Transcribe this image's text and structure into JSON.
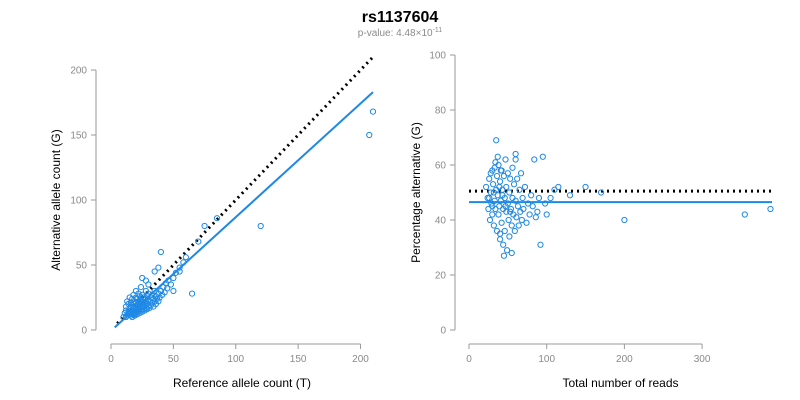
{
  "title": "rs1137604",
  "subtitle": {
    "label": "p-value: ",
    "mantissa": "4.48",
    "times": "×",
    "base": "10",
    "exponent": "-11"
  },
  "colors": {
    "points": "#1e88e5",
    "fit": "#1e88e5",
    "reference": "#000000",
    "axis": "#9a9a9a"
  },
  "chart_data": [
    {
      "type": "scatter",
      "title": "",
      "xlabel": "Reference allele count (T)",
      "ylabel": "Alternative allele count (G)",
      "xlim": [
        0,
        210
      ],
      "ylim": [
        0,
        200
      ],
      "xticks": [
        0,
        50,
        100,
        150,
        200
      ],
      "yticks": [
        0,
        50,
        100,
        150,
        200
      ],
      "reference_line": {
        "style": "dotted",
        "x": [
          5,
          210
        ],
        "y": [
          5,
          210
        ]
      },
      "fit_line": {
        "style": "solid",
        "x": [
          3,
          210
        ],
        "y": [
          2,
          183
        ]
      },
      "points": [
        [
          10,
          10
        ],
        [
          11,
          13
        ],
        [
          12,
          15
        ],
        [
          12,
          18
        ],
        [
          13,
          11
        ],
        [
          13,
          22
        ],
        [
          14,
          14
        ],
        [
          14,
          20
        ],
        [
          15,
          12
        ],
        [
          15,
          16
        ],
        [
          15,
          25
        ],
        [
          16,
          13
        ],
        [
          16,
          18
        ],
        [
          16,
          21
        ],
        [
          17,
          10
        ],
        [
          17,
          15
        ],
        [
          17,
          19
        ],
        [
          17,
          24
        ],
        [
          18,
          12
        ],
        [
          18,
          17
        ],
        [
          18,
          20
        ],
        [
          18,
          27
        ],
        [
          19,
          11
        ],
        [
          19,
          14
        ],
        [
          19,
          22
        ],
        [
          19,
          16
        ],
        [
          20,
          13
        ],
        [
          20,
          18
        ],
        [
          20,
          21
        ],
        [
          20,
          25
        ],
        [
          20,
          30
        ],
        [
          21,
          12
        ],
        [
          21,
          16
        ],
        [
          21,
          19
        ],
        [
          21,
          24
        ],
        [
          22,
          14
        ],
        [
          22,
          17
        ],
        [
          22,
          22
        ],
        [
          22,
          28
        ],
        [
          23,
          13
        ],
        [
          23,
          18
        ],
        [
          23,
          21
        ],
        [
          23,
          26
        ],
        [
          24,
          15
        ],
        [
          24,
          20
        ],
        [
          24,
          23
        ],
        [
          24,
          33
        ],
        [
          25,
          14
        ],
        [
          25,
          18
        ],
        [
          25,
          22
        ],
        [
          25,
          27
        ],
        [
          26,
          16
        ],
        [
          26,
          21
        ],
        [
          26,
          25
        ],
        [
          27,
          15
        ],
        [
          27,
          19
        ],
        [
          27,
          24
        ],
        [
          28,
          17
        ],
        [
          28,
          22
        ],
        [
          28,
          30
        ],
        [
          29,
          16
        ],
        [
          29,
          20
        ],
        [
          29,
          26
        ],
        [
          30,
          18
        ],
        [
          30,
          23
        ],
        [
          30,
          28
        ],
        [
          31,
          17
        ],
        [
          31,
          22
        ],
        [
          32,
          19
        ],
        [
          32,
          25
        ],
        [
          33,
          21
        ],
        [
          33,
          27
        ],
        [
          34,
          18
        ],
        [
          34,
          24
        ],
        [
          35,
          22
        ],
        [
          35,
          30
        ],
        [
          36,
          20
        ],
        [
          36,
          26
        ],
        [
          37,
          24
        ],
        [
          38,
          22
        ],
        [
          38,
          28
        ],
        [
          39,
          25
        ],
        [
          40,
          30
        ],
        [
          41,
          27
        ],
        [
          42,
          33
        ],
        [
          43,
          29
        ],
        [
          44,
          36
        ],
        [
          45,
          32
        ],
        [
          46,
          38
        ],
        [
          48,
          35
        ],
        [
          50,
          40
        ],
        [
          52,
          44
        ],
        [
          55,
          48
        ],
        [
          58,
          52
        ],
        [
          60,
          56
        ],
        [
          25,
          40
        ],
        [
          28,
          38
        ],
        [
          30,
          35
        ],
        [
          35,
          45
        ],
        [
          38,
          48
        ],
        [
          14,
          12
        ],
        [
          16,
          11
        ],
        [
          18,
          14
        ],
        [
          12,
          10
        ],
        [
          15,
          14
        ],
        [
          17,
          13
        ],
        [
          19,
          12
        ],
        [
          21,
          15
        ],
        [
          23,
          16
        ],
        [
          26,
          18
        ],
        [
          50,
          30
        ],
        [
          65,
          28
        ],
        [
          70,
          68
        ],
        [
          75,
          80
        ],
        [
          85,
          86
        ],
        [
          120,
          80
        ],
        [
          207,
          150
        ],
        [
          210,
          168
        ],
        [
          40,
          60
        ],
        [
          55,
          45
        ]
      ]
    },
    {
      "type": "scatter",
      "title": "",
      "xlabel": "Total number of reads",
      "ylabel": "Percentage alternative (G)",
      "xlim": [
        0,
        390
      ],
      "ylim": [
        0,
        100
      ],
      "xticks": [
        0,
        100,
        200,
        300
      ],
      "yticks": [
        0,
        20,
        40,
        60,
        80,
        100
      ],
      "reference_line": {
        "style": "dotted",
        "x": [
          0,
          390
        ],
        "y": [
          50.5,
          50.5
        ]
      },
      "fit_line": {
        "style": "solid",
        "x": [
          0,
          390
        ],
        "y": [
          46.5,
          46.5
        ]
      },
      "points": [
        [
          22,
          52
        ],
        [
          24,
          48
        ],
        [
          25,
          44
        ],
        [
          26,
          55
        ],
        [
          27,
          40
        ],
        [
          28,
          50
        ],
        [
          29,
          46
        ],
        [
          30,
          58
        ],
        [
          30,
          42
        ],
        [
          31,
          53
        ],
        [
          32,
          38
        ],
        [
          33,
          47
        ],
        [
          34,
          61
        ],
        [
          34,
          44
        ],
        [
          35,
          51
        ],
        [
          36,
          36
        ],
        [
          36,
          56
        ],
        [
          37,
          49
        ],
        [
          38,
          42
        ],
        [
          38,
          60
        ],
        [
          39,
          45
        ],
        [
          40,
          33
        ],
        [
          40,
          54
        ],
        [
          41,
          47
        ],
        [
          42,
          39
        ],
        [
          42,
          58
        ],
        [
          43,
          51
        ],
        [
          44,
          44
        ],
        [
          44,
          31
        ],
        [
          45,
          56
        ],
        [
          46,
          48
        ],
        [
          46,
          36
        ],
        [
          47,
          62
        ],
        [
          48,
          43
        ],
        [
          48,
          52
        ],
        [
          49,
          29
        ],
        [
          50,
          46
        ],
        [
          50,
          57
        ],
        [
          51,
          40
        ],
        [
          52,
          50
        ],
        [
          52,
          34
        ],
        [
          53,
          55
        ],
        [
          54,
          44
        ],
        [
          55,
          38
        ],
        [
          56,
          59
        ],
        [
          56,
          48
        ],
        [
          57,
          42
        ],
        [
          58,
          53
        ],
        [
          59,
          36
        ],
        [
          60,
          47
        ],
        [
          60,
          64
        ],
        [
          61,
          41
        ],
        [
          62,
          55
        ],
        [
          63,
          45
        ],
        [
          64,
          38
        ],
        [
          65,
          51
        ],
        [
          66,
          43
        ],
        [
          67,
          57
        ],
        [
          68,
          40
        ],
        [
          69,
          48
        ],
        [
          70,
          44
        ],
        [
          72,
          52
        ],
        [
          74,
          39
        ],
        [
          76,
          46
        ],
        [
          78,
          42
        ],
        [
          80,
          49
        ],
        [
          82,
          45
        ],
        [
          84,
          62
        ],
        [
          86,
          41
        ],
        [
          88,
          43
        ],
        [
          90,
          48
        ],
        [
          92,
          31
        ],
        [
          95,
          63
        ],
        [
          98,
          46
        ],
        [
          100,
          42
        ],
        [
          105,
          48
        ],
        [
          110,
          51
        ],
        [
          115,
          52
        ],
        [
          130,
          49
        ],
        [
          150,
          52
        ],
        [
          170,
          50
        ],
        [
          200,
          40
        ],
        [
          355,
          42
        ],
        [
          388,
          44
        ],
        [
          35,
          69
        ],
        [
          60,
          62
        ],
        [
          45,
          27
        ],
        [
          55,
          28
        ],
        [
          40,
          35
        ],
        [
          30,
          45
        ],
        [
          28,
          57
        ],
        [
          33,
          59
        ],
        [
          37,
          63
        ],
        [
          41,
          58
        ],
        [
          26,
          48
        ],
        [
          32,
          50
        ],
        [
          39,
          52
        ],
        [
          43,
          49
        ],
        [
          47,
          45
        ],
        [
          53,
          43
        ]
      ]
    }
  ]
}
